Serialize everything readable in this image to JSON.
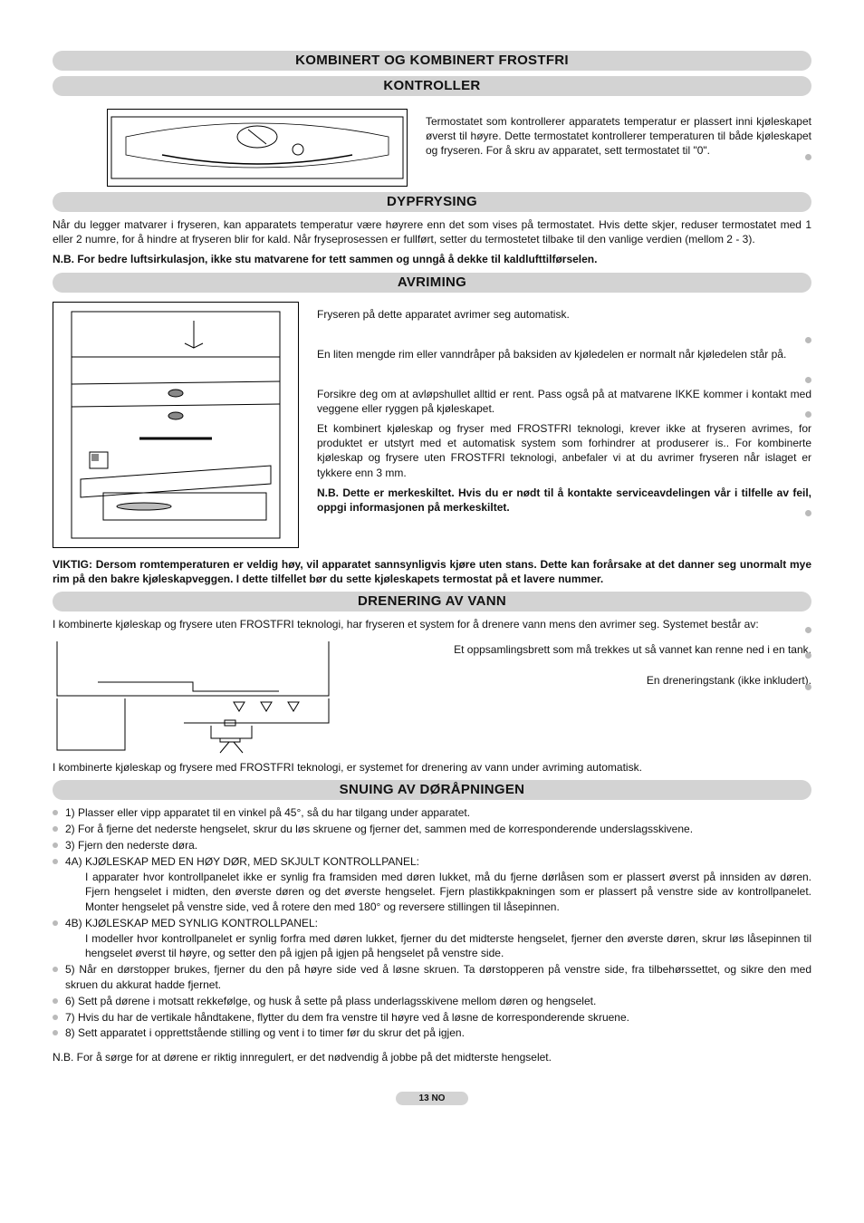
{
  "headings": {
    "h1": "KOMBINERT OG KOMBINERT FROSTFRI",
    "h2": "KONTROLLER",
    "h3": "DYPFRYSING",
    "h4": "AVRIMING",
    "h5": "DRENERING AV VANN",
    "h6": "SNUING AV DØRÅPNINGEN"
  },
  "kontroller_para": "Termostatet som kontrollerer apparatets temperatur er plassert inni kjøleskapet øverst til høyre. Dette termostatet kontrollerer temperaturen til både kjøleskapet og fryseren. For å skru av apparatet, sett termostatet til \"0\".",
  "dypfrysing_para": "Når du legger matvarer i fryseren, kan apparatets temperatur være høyrere enn det som vises på termostatet. Hvis dette skjer, reduser termostatet med 1 eller 2 numre, for å hindre at fryseren blir for kald. Når fryseprosessen er fullført, setter du termostetet tilbake til den vanlige verdien (mellom 2 - 3).",
  "dypfrysing_nb": "N.B. For bedre luftsirkulasjon, ikke stu matvarene for tett sammen og unngå å dekke til kaldlufttilførselen.",
  "avriming": {
    "p1": "Fryseren på dette apparatet avrimer seg automatisk.",
    "p2": "En liten mengde rim eller vanndråper på baksiden av kjøledelen er normalt når kjøledelen står på.",
    "p3": "Forsikre deg om at avløpshullet alltid er rent. Pass også på at matvarene IKKE kommer i kontakt med veggene eller ryggen på kjøleskapet.",
    "p4": "Et kombinert kjøleskap og fryser med FROSTFRI teknologi, krever ikke at fryseren avrimes, for produktet er utstyrt med et automatisk system som forhindrer at produserer is.. For kombinerte kjøleskap og frysere uten FROSTFRI teknologi, anbefaler vi at du avrimer fryseren når islaget er tykkere enn 3 mm.",
    "nb": "N.B. Dette er merkeskiltet. Hvis du er nødt til å kontakte serviceavdelingen vår i tilfelle av feil, oppgi informasjonen på merkeskiltet."
  },
  "viktig": "VIKTIG: Dersom romtemperaturen er veldig høy, vil apparatet sannsynligvis kjøre uten stans. Dette kan forårsake at det danner seg unormalt mye rim på den bakre kjøleskapveggen. I dette tilfellet bør du sette kjøleskapets termostat på et lavere nummer.",
  "drenering": {
    "intro": "I kombinerte kjøleskap og frysere uten FROSTFRI teknologi, har fryseren et system for å drenere vann mens den avrimer seg. Systemet består av:",
    "p1": "Et oppsamlingsbrett som må trekkes ut så vannet kan renne ned i en tank.",
    "p2": "En dreneringstank (ikke inkludert).",
    "outro": "I kombinerte kjøleskap og frysere med FROSTFRI teknologi, er systemet for drenering av vann under avriming automatisk."
  },
  "snuing": {
    "items": [
      "1)  Plasser eller vipp apparatet til en vinkel på 45°, så du har tilgang under apparatet.",
      "2)  For å fjerne det nederste hengselet, skrur du løs skruene og fjerner det, sammen med de korresponderende underslagsskivene.",
      "3)  Fjern den nederste døra.",
      "4A)  KJØLESKAP MED EN HØY DØR, MED SKJULT KONTROLLPANEL:\n I apparater hvor kontrollpanelet ikke er synlig fra framsiden med døren lukket, må du fjerne dørlåsen som er plassert øverst på innsiden av døren. Fjern hengselet i midten, den øverste døren og det øverste hengselet. Fjern plastikkpakningen som er plassert på venstre side av kontrollpanelet. Monter hengselet på venstre side, ved å rotere den med 180° og reversere stillingen til låsepinnen.",
      "4B)  KJØLESKAP MED SYNLIG KONTROLLPANEL:\n I modeller hvor kontrollpanelet er synlig forfra med døren lukket, fjerner du det midterste hengselet, fjerner den øverste døren, skrur løs låsepinnen til hengselet øverst til høyre, og setter den på igjen på igjen på hengselet på venstre side.",
      "5)  Når en dørstopper brukes, fjerner du den på høyre side ved å løsne skruen. Ta dørstopperen på venstre side, fra tilbehørssettet, og sikre den med skruen du akkurat hadde fjernet.",
      "6)  Sett på dørene i motsatt rekkefølge, og husk å sette på plass underlagsskivene mellom døren og hengselet.",
      "7)  Hvis du har de vertikale håndtakene, flytter du dem fra venstre til høyre ved å løsne de korresponderende skruene.",
      "8)  Sett apparatet i opprettstående stilling og vent i to timer før du skrur det på igjen."
    ],
    "nb": "N.B. For å sørge for at dørene er riktig innregulert, er det nødvendig å jobbe på det midterste hengselet."
  },
  "page_number": "13 NO",
  "colors": {
    "bar_bg": "#d3d3d3",
    "bullet": "#bababa"
  }
}
